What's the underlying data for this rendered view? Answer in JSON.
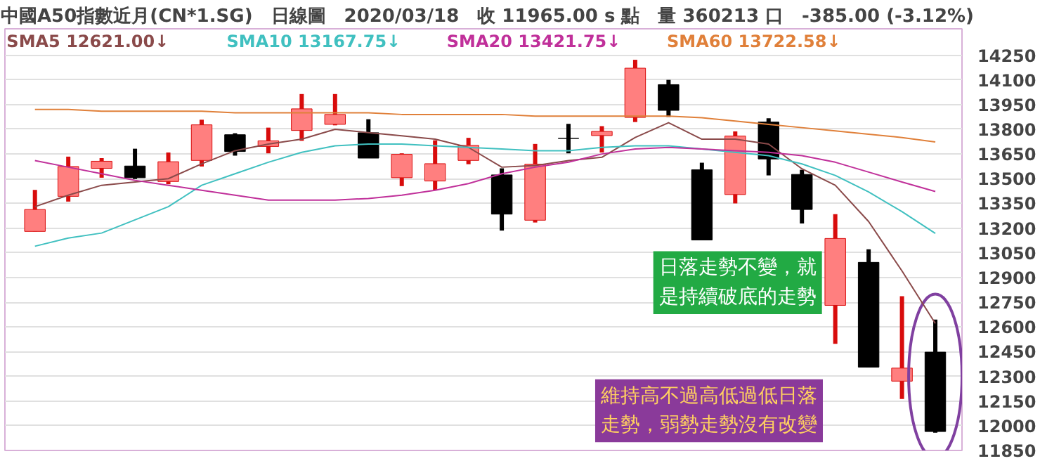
{
  "chart_data": {
    "type": "candlestick",
    "title": "中國A50指數近月(CN*1.SG)　日線圖　2020/03/18　收 11965.00 s 點　量 360213 口　-385.00 (-3.12%)",
    "categories": [
      null,
      null,
      null,
      null,
      null,
      null,
      null,
      null,
      null,
      null,
      null,
      null,
      null,
      null,
      null,
      null,
      null,
      null,
      null,
      null,
      null,
      null,
      null,
      null,
      null,
      null,
      null,
      null
    ],
    "ohlc": [
      [
        13180,
        13432,
        13180,
        13313
      ],
      [
        13393,
        13634,
        13361,
        13574
      ],
      [
        13563,
        13625,
        13506,
        13606
      ],
      [
        13577,
        13682,
        13498,
        13506
      ],
      [
        13483,
        13659,
        13466,
        13603
      ],
      [
        13611,
        13858,
        13574,
        13827
      ],
      [
        13767,
        13776,
        13640,
        13665
      ],
      [
        13696,
        13810,
        13654,
        13730
      ],
      [
        13793,
        14014,
        13730,
        13924
      ],
      [
        13830,
        14014,
        13824,
        13890
      ],
      [
        13779,
        13861,
        13625,
        13625
      ],
      [
        13506,
        13654,
        13455,
        13648
      ],
      [
        13486,
        13733,
        13432,
        13591
      ],
      [
        13611,
        13748,
        13588,
        13702
      ],
      [
        13523,
        13563,
        13185,
        13285
      ],
      [
        13248,
        13711,
        13234,
        13588
      ],
      [
        13745,
        13833,
        13654,
        13745
      ],
      [
        13762,
        13819,
        13659,
        13787
      ],
      [
        13872,
        14222,
        13844,
        14171
      ],
      [
        14071,
        14100,
        13875,
        13915
      ],
      [
        13554,
        13597,
        13128,
        13128
      ],
      [
        13404,
        13787,
        13350,
        13759
      ],
      [
        13844,
        13867,
        13520,
        13620
      ],
      [
        13526,
        13554,
        13228,
        13313
      ],
      [
        12731,
        13285,
        12498,
        13137
      ],
      [
        12992,
        13071,
        12356,
        12356
      ],
      [
        12271,
        12787,
        12163,
        12350
      ],
      [
        12447,
        12645,
        11958,
        11965
      ]
    ],
    "colors": [
      "#ff7f7f",
      "#ff7f7f",
      "#ff7f7f",
      "#000000",
      "#ff7f7f",
      "#ff7f7f",
      "#000000",
      "#ff7f7f",
      "#ff7f7f",
      "#ff7f7f",
      "#000000",
      "#ff7f7f",
      "#ff7f7f",
      "#ff7f7f",
      "#000000",
      "#ff7f7f",
      "#000000",
      "#ff7f7f",
      "#ff7f7f",
      "#000000",
      "#000000",
      "#ff7f7f",
      "#000000",
      "#000000",
      "#ff7f7f",
      "#000000",
      "#ff7f7f",
      "#000000"
    ],
    "series": [
      {
        "type": "line",
        "name": "SMA5 12621.00↓",
        "color": "#8a4a4a",
        "values": [
          13330,
          13400,
          13460,
          13480,
          13500,
          13590,
          13670,
          13710,
          13740,
          13800,
          13780,
          13760,
          13740,
          13690,
          13570,
          13580,
          13610,
          13630,
          13750,
          13840,
          13740,
          13740,
          13710,
          13560,
          13460,
          13240,
          12940,
          12621
        ]
      },
      {
        "type": "line",
        "name": "SMA10 13167.75↓",
        "color": "#40c0c0",
        "values": [
          13090,
          13140,
          13170,
          13250,
          13330,
          13460,
          13530,
          13600,
          13660,
          13700,
          13710,
          13710,
          13700,
          13690,
          13680,
          13670,
          13670,
          13690,
          13700,
          13700,
          13680,
          13660,
          13640,
          13590,
          13520,
          13420,
          13300,
          13168
        ]
      },
      {
        "type": "line",
        "name": "SMA20 13421.75↓",
        "color": "#c0309a",
        "values": [
          13610,
          13570,
          13530,
          13490,
          13460,
          13430,
          13400,
          13370,
          13370,
          13370,
          13380,
          13400,
          13430,
          13470,
          13530,
          13570,
          13600,
          13650,
          13680,
          13690,
          13680,
          13670,
          13660,
          13640,
          13600,
          13540,
          13480,
          13422
        ]
      },
      {
        "type": "line",
        "name": "SMA60 13722.58↓",
        "color": "#e0803a",
        "values": [
          13920,
          13920,
          13910,
          13910,
          13910,
          13910,
          13900,
          13900,
          13900,
          13900,
          13900,
          13890,
          13890,
          13890,
          13890,
          13880,
          13880,
          13880,
          13880,
          13880,
          13870,
          13850,
          13830,
          13810,
          13790,
          13770,
          13750,
          13723
        ]
      }
    ],
    "ylim": [
      11850,
      14410
    ],
    "yticks": [
      11850,
      12000,
      12150,
      12300,
      12450,
      12600,
      12750,
      12900,
      13050,
      13200,
      13350,
      13500,
      13650,
      13800,
      13950,
      14100,
      14250
    ],
    "grid": "y",
    "annotations": [
      "日落走勢不變，就是持續破底的走勢",
      "維持高不過高低過低日落走勢，弱勢走勢沒有改變"
    ]
  }
}
